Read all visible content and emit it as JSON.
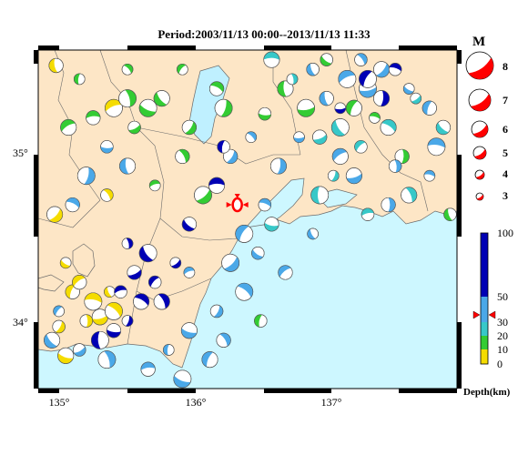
{
  "title": "Period:2003/11/13 00:00--2013/11/13 11:33",
  "axes": {
    "lon_ticks": [
      "135°",
      "136°",
      "137°"
    ],
    "lat_ticks": [
      "35°",
      "34°"
    ]
  },
  "magnitude_legend": {
    "title": "M",
    "levels": [
      "8",
      "7",
      "6",
      "5",
      "4",
      "3"
    ]
  },
  "depth_legend": {
    "title": "Depth(km)",
    "ticks": [
      "100",
      "50",
      "30",
      "20",
      "10",
      "0"
    ],
    "colors": [
      "#0000b4",
      "#4aa8e8",
      "#37c8c8",
      "#33cc33",
      "#f5dc00"
    ]
  },
  "colors": {
    "land": "#fde6c6",
    "sea": "#cdf7ff",
    "lake": "#bff0ff",
    "mainshock": "#ff0000"
  },
  "chart_data": {
    "type": "scatter",
    "x_label": "",
    "y_label": "",
    "xlim": [
      134.9,
      137.95
    ],
    "ylim": [
      33.6,
      35.35
    ],
    "mainshock": {
      "lon": 136.35,
      "lat": 34.55
    },
    "series": [
      {
        "name": "",
        "depth_class": "0-10 km",
        "color": "#f5dc00",
        "points": [
          [
            135.03,
            35.27
          ],
          [
            135.45,
            35.05
          ],
          [
            135.4,
            34.6
          ],
          [
            135.02,
            34.5
          ],
          [
            135.1,
            34.25
          ],
          [
            135.15,
            34.1
          ],
          [
            135.3,
            34.05
          ],
          [
            135.25,
            33.95
          ],
          [
            135.35,
            33.97
          ],
          [
            135.42,
            34.1
          ],
          [
            135.2,
            34.15
          ],
          [
            135.45,
            34.0
          ],
          [
            135.05,
            33.92
          ],
          [
            135.1,
            33.77
          ]
        ]
      },
      {
        "name": "",
        "depth_class": "10-20 km",
        "color": "#33cc33",
        "points": [
          [
            135.2,
            35.2
          ],
          [
            135.3,
            35.0
          ],
          [
            135.55,
            35.1
          ],
          [
            135.6,
            34.95
          ],
          [
            135.8,
            35.1
          ],
          [
            135.95,
            35.25
          ],
          [
            136.2,
            35.15
          ],
          [
            136.25,
            35.05
          ],
          [
            136.55,
            35.02
          ],
          [
            136.7,
            35.15
          ],
          [
            135.75,
            34.65
          ],
          [
            135.95,
            34.8
          ],
          [
            136.1,
            34.6
          ],
          [
            137.0,
            35.3
          ],
          [
            137.2,
            35.05
          ],
          [
            137.35,
            35.0
          ],
          [
            137.55,
            34.8
          ],
          [
            136.85,
            35.05
          ],
          [
            137.9,
            34.5
          ],
          [
            135.12,
            34.95
          ],
          [
            135.55,
            35.25
          ],
          [
            136.0,
            34.95
          ],
          [
            135.7,
            35.05
          ],
          [
            136.52,
            33.95
          ]
        ]
      },
      {
        "name": "",
        "depth_class": "20-30 km",
        "color": "#37c8c8",
        "points": [
          [
            136.6,
            35.3
          ],
          [
            136.75,
            35.2
          ],
          [
            136.95,
            34.9
          ],
          [
            137.1,
            34.95
          ],
          [
            137.25,
            34.85
          ],
          [
            137.45,
            34.95
          ],
          [
            137.05,
            34.7
          ],
          [
            136.6,
            34.45
          ],
          [
            136.95,
            34.6
          ],
          [
            137.3,
            34.5
          ],
          [
            137.6,
            34.6
          ],
          [
            137.65,
            35.1
          ],
          [
            137.85,
            34.95
          ]
        ]
      },
      {
        "name": "",
        "depth_class": "30-50 km",
        "color": "#4aa8e8",
        "points": [
          [
            136.4,
            34.4
          ],
          [
            136.55,
            34.55
          ],
          [
            136.65,
            34.75
          ],
          [
            136.8,
            34.9
          ],
          [
            137.0,
            35.1
          ],
          [
            137.15,
            35.2
          ],
          [
            137.25,
            35.3
          ],
          [
            137.4,
            35.25
          ],
          [
            137.6,
            35.15
          ],
          [
            137.75,
            35.05
          ],
          [
            137.8,
            34.85
          ],
          [
            137.5,
            34.75
          ],
          [
            137.2,
            34.7
          ],
          [
            136.9,
            34.4
          ],
          [
            136.7,
            34.2
          ],
          [
            136.4,
            34.1
          ],
          [
            136.2,
            34.0
          ],
          [
            136.0,
            33.9
          ],
          [
            135.85,
            33.8
          ],
          [
            135.7,
            33.7
          ],
          [
            135.4,
            33.75
          ],
          [
            135.2,
            33.8
          ],
          [
            135.0,
            33.85
          ],
          [
            135.05,
            34.0
          ],
          [
            135.15,
            34.55
          ],
          [
            135.25,
            34.7
          ],
          [
            135.4,
            34.85
          ],
          [
            135.55,
            34.75
          ],
          [
            136.0,
            34.2
          ],
          [
            136.25,
            33.85
          ],
          [
            136.3,
            34.25
          ],
          [
            136.5,
            34.3
          ],
          [
            136.15,
            33.75
          ],
          [
            137.75,
            34.7
          ],
          [
            137.45,
            34.55
          ],
          [
            137.3,
            35.15
          ],
          [
            136.9,
            35.25
          ],
          [
            137.1,
            34.8
          ],
          [
            136.45,
            34.9
          ],
          [
            136.3,
            34.8
          ],
          [
            135.95,
            33.65
          ]
        ]
      },
      {
        "name": "",
        "depth_class": ">50 km",
        "color": "#0000b4",
        "points": [
          [
            136.25,
            34.85
          ],
          [
            136.2,
            34.65
          ],
          [
            135.55,
            34.35
          ],
          [
            135.6,
            34.2
          ],
          [
            135.7,
            34.3
          ],
          [
            135.75,
            34.15
          ],
          [
            135.65,
            34.05
          ],
          [
            135.55,
            33.95
          ],
          [
            135.45,
            33.9
          ],
          [
            135.35,
            33.85
          ],
          [
            135.5,
            34.1
          ],
          [
            135.8,
            34.05
          ],
          [
            135.9,
            34.25
          ],
          [
            136.0,
            34.45
          ],
          [
            137.3,
            35.2
          ],
          [
            137.5,
            35.25
          ],
          [
            137.4,
            35.1
          ],
          [
            137.1,
            35.05
          ]
        ]
      }
    ]
  }
}
